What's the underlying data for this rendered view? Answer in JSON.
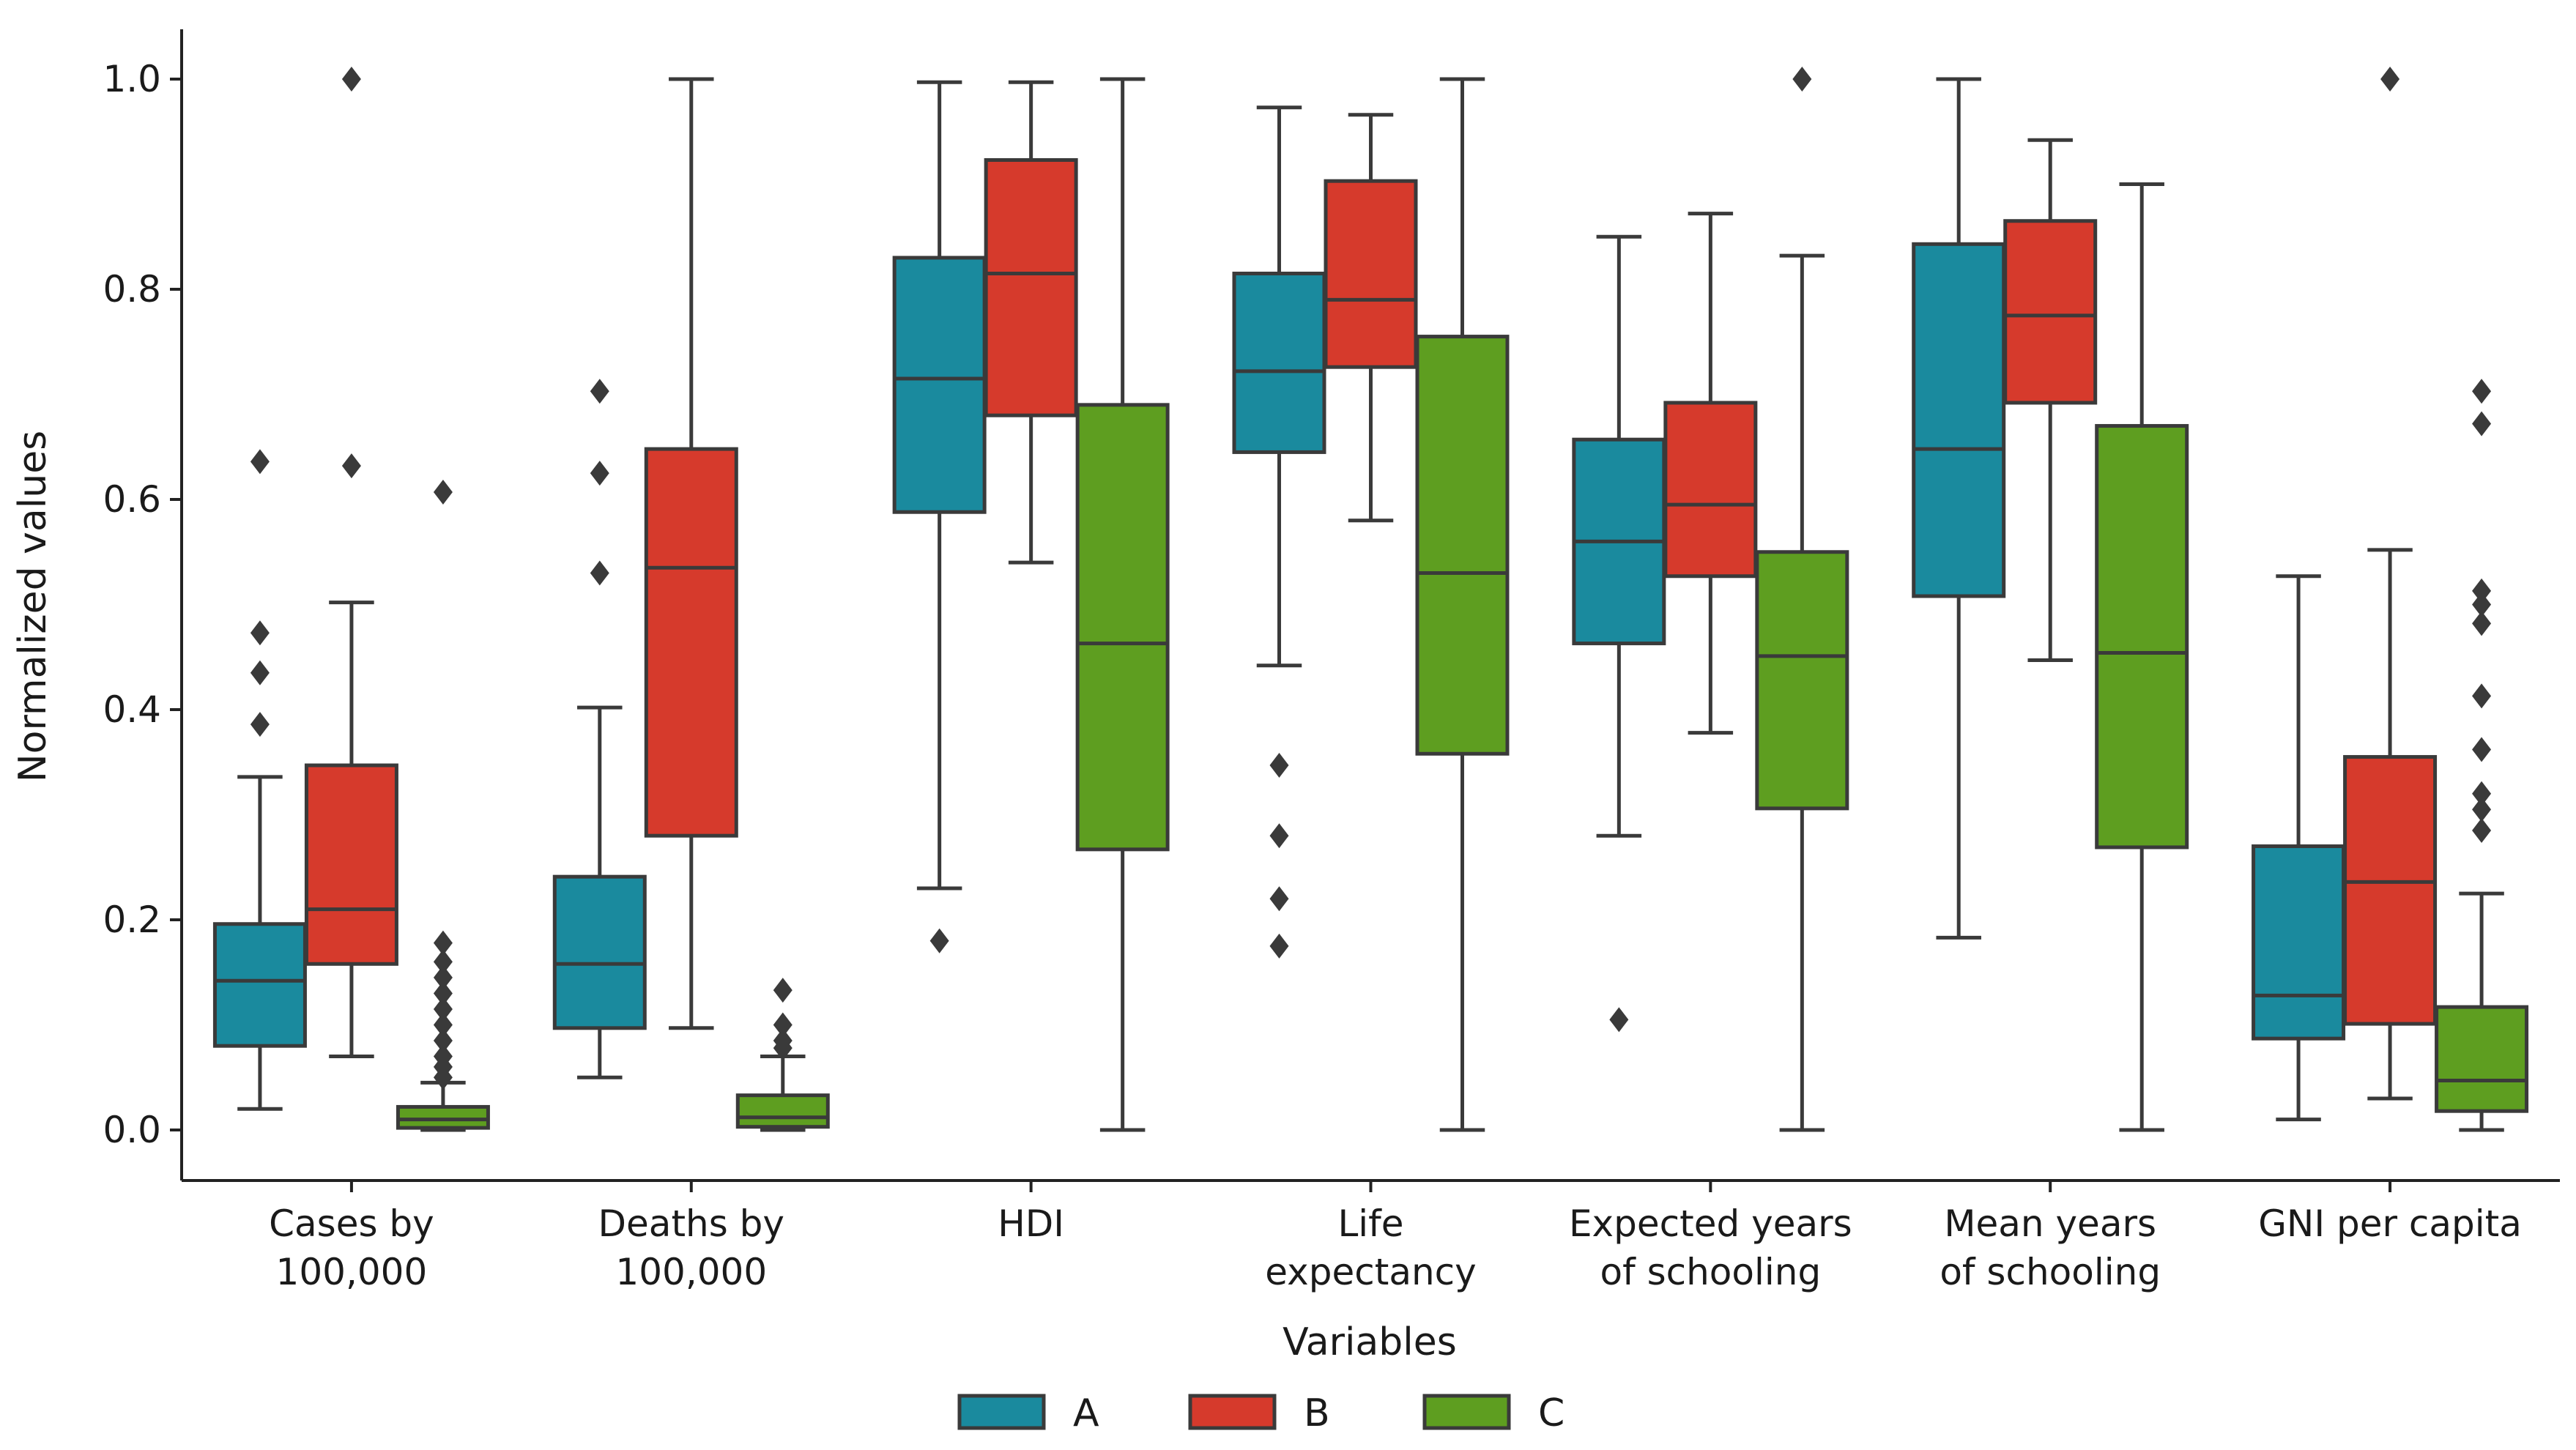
{
  "chart_data": {
    "type": "box",
    "title": "",
    "xlabel": "Variables",
    "ylabel": "Normalized values",
    "ylim": [
      -0.05,
      1.05
    ],
    "yticks": [
      "0.0",
      "0.2",
      "0.4",
      "0.6",
      "0.8",
      "1.0"
    ],
    "grid": false,
    "legend_position": "bottom-center",
    "categories": [
      [
        "Cases by",
        "100,000"
      ],
      [
        "Deaths by",
        "100,000"
      ],
      [
        "HDI"
      ],
      [
        "Life",
        "expectancy"
      ],
      [
        "Expected years",
        "of schooling"
      ],
      [
        "Mean years",
        "of schooling"
      ],
      [
        "GNI per capita"
      ]
    ],
    "series": [
      {
        "name": "A",
        "color": "#1a8a9e",
        "boxes": [
          {
            "whisker_low": 0.02,
            "q1": 0.08,
            "median": 0.142,
            "q3": 0.196,
            "whisker_high": 0.336,
            "outliers": [
              0.386,
              0.435,
              0.473,
              0.636
            ]
          },
          {
            "whisker_low": 0.05,
            "q1": 0.097,
            "median": 0.158,
            "q3": 0.241,
            "whisker_high": 0.402,
            "outliers": [
              0.53,
              0.625,
              0.703
            ]
          },
          {
            "whisker_low": 0.23,
            "q1": 0.588,
            "median": 0.715,
            "q3": 0.83,
            "whisker_high": 0.997,
            "outliers": [
              0.18
            ]
          },
          {
            "whisker_low": 0.442,
            "q1": 0.645,
            "median": 0.722,
            "q3": 0.815,
            "whisker_high": 0.973,
            "outliers": [
              0.175,
              0.22,
              0.28,
              0.347
            ]
          },
          {
            "whisker_low": 0.28,
            "q1": 0.463,
            "median": 0.56,
            "q3": 0.657,
            "whisker_high": 0.85,
            "outliers": [
              0.105
            ]
          },
          {
            "whisker_low": 0.183,
            "q1": 0.508,
            "median": 0.648,
            "q3": 0.843,
            "whisker_high": 1.0,
            "outliers": []
          },
          {
            "whisker_low": 0.01,
            "q1": 0.087,
            "median": 0.128,
            "q3": 0.27,
            "whisker_high": 0.527,
            "outliers": []
          }
        ]
      },
      {
        "name": "B",
        "color": "#d63a2c",
        "boxes": [
          {
            "whisker_low": 0.07,
            "q1": 0.158,
            "median": 0.21,
            "q3": 0.347,
            "whisker_high": 0.502,
            "outliers": [
              0.632,
              1.0
            ]
          },
          {
            "whisker_low": 0.097,
            "q1": 0.28,
            "median": 0.535,
            "q3": 0.648,
            "whisker_high": 1.0,
            "outliers": []
          },
          {
            "whisker_low": 0.54,
            "q1": 0.68,
            "median": 0.815,
            "q3": 0.923,
            "whisker_high": 0.997,
            "outliers": []
          },
          {
            "whisker_low": 0.58,
            "q1": 0.726,
            "median": 0.79,
            "q3": 0.903,
            "whisker_high": 0.966,
            "outliers": []
          },
          {
            "whisker_low": 0.378,
            "q1": 0.527,
            "median": 0.595,
            "q3": 0.692,
            "whisker_high": 0.872,
            "outliers": []
          },
          {
            "whisker_low": 0.447,
            "q1": 0.692,
            "median": 0.775,
            "q3": 0.865,
            "whisker_high": 0.942,
            "outliers": []
          },
          {
            "whisker_low": 0.03,
            "q1": 0.101,
            "median": 0.236,
            "q3": 0.355,
            "whisker_high": 0.552,
            "outliers": [
              1.0
            ]
          }
        ]
      },
      {
        "name": "C",
        "color": "#5e9e20",
        "boxes": [
          {
            "whisker_low": 0.0,
            "q1": 0.002,
            "median": 0.01,
            "q3": 0.022,
            "whisker_high": 0.045,
            "outliers": [
              0.05,
              0.06,
              0.07,
              0.085,
              0.1,
              0.115,
              0.13,
              0.145,
              0.16,
              0.178,
              0.607
            ]
          },
          {
            "whisker_low": 0.0,
            "q1": 0.003,
            "median": 0.012,
            "q3": 0.033,
            "whisker_high": 0.07,
            "outliers": [
              0.078,
              0.085,
              0.1,
              0.133
            ]
          },
          {
            "whisker_low": 0.0,
            "q1": 0.267,
            "median": 0.463,
            "q3": 0.69,
            "whisker_high": 1.0,
            "outliers": []
          },
          {
            "whisker_low": 0.0,
            "q1": 0.358,
            "median": 0.53,
            "q3": 0.755,
            "whisker_high": 1.0,
            "outliers": []
          },
          {
            "whisker_low": 0.0,
            "q1": 0.306,
            "median": 0.451,
            "q3": 0.55,
            "whisker_high": 0.832,
            "outliers": [
              1.0
            ]
          },
          {
            "whisker_low": 0.0,
            "q1": 0.269,
            "median": 0.454,
            "q3": 0.67,
            "whisker_high": 0.9,
            "outliers": []
          },
          {
            "whisker_low": 0.0,
            "q1": 0.018,
            "median": 0.047,
            "q3": 0.117,
            "whisker_high": 0.225,
            "outliers": [
              0.285,
              0.305,
              0.32,
              0.362,
              0.413,
              0.482,
              0.5,
              0.513,
              0.672,
              0.703
            ]
          }
        ]
      }
    ]
  }
}
